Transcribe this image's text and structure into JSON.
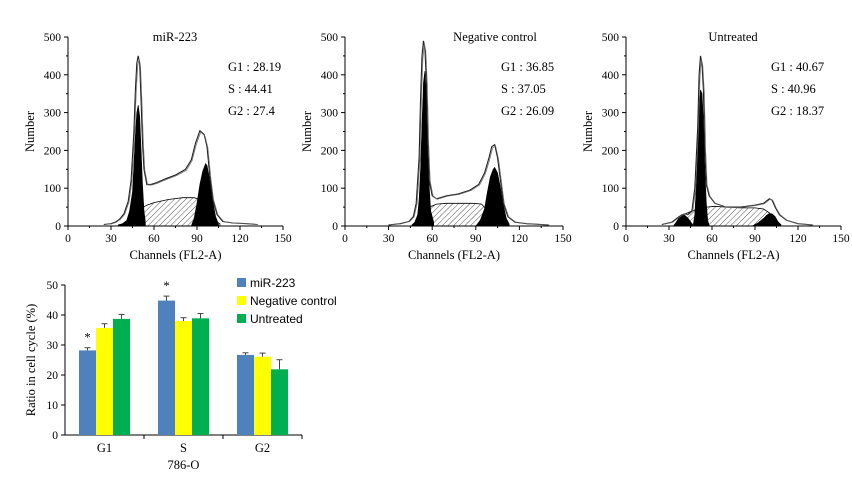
{
  "flow_panels": [
    {
      "title": "miR-223",
      "stats": [
        "G1 : 28.19",
        "S : 44.41",
        "G2 : 27.4"
      ],
      "xlabel": "Channels (FL2-A)",
      "ylabel": "Number",
      "xticks": [
        "0",
        "30",
        "60",
        "90",
        "120",
        "150"
      ],
      "yticks": [
        "0",
        "100",
        "200",
        "300",
        "400",
        "500"
      ]
    },
    {
      "title": "Negative control",
      "stats": [
        "G1 : 36.85",
        "S : 37.05",
        "G2 : 26.09"
      ],
      "xlabel": "Channels (FL2-A)",
      "ylabel": "Number",
      "xticks": [
        "0",
        "30",
        "60",
        "90",
        "120",
        "150"
      ],
      "yticks": [
        "0",
        "100",
        "200",
        "300",
        "400",
        "500"
      ]
    },
    {
      "title": "Untreated",
      "stats": [
        "G1 : 40.67",
        "S : 40.96",
        "G2 : 18.37"
      ],
      "xlabel": "Channels (FL2-A)",
      "ylabel": "Number",
      "xticks": [
        "0",
        "30",
        "60",
        "90",
        "120",
        "150"
      ],
      "yticks": [
        "0",
        "100",
        "200",
        "300",
        "400",
        "500"
      ]
    }
  ],
  "chart_data": [
    {
      "type": "area",
      "title": "miR-223",
      "xlabel": "Channels (FL2-A)",
      "ylabel": "Number",
      "xlim": [
        0,
        150
      ],
      "ylim": [
        0,
        500
      ],
      "envelope": [
        [
          25,
          4
        ],
        [
          30,
          6
        ],
        [
          33,
          10
        ],
        [
          36,
          18
        ],
        [
          39,
          32
        ],
        [
          42,
          65
        ],
        [
          44,
          120
        ],
        [
          46,
          250
        ],
        [
          47,
          360
        ],
        [
          48,
          430
        ],
        [
          49,
          450
        ],
        [
          50,
          430
        ],
        [
          51,
          330
        ],
        [
          52,
          220
        ],
        [
          53,
          150
        ],
        [
          55,
          110
        ],
        [
          58,
          110
        ],
        [
          62,
          115
        ],
        [
          68,
          125
        ],
        [
          75,
          135
        ],
        [
          82,
          150
        ],
        [
          86,
          175
        ],
        [
          89,
          220
        ],
        [
          92,
          252
        ],
        [
          95,
          242
        ],
        [
          97,
          210
        ],
        [
          99,
          130
        ],
        [
          101,
          70
        ],
        [
          104,
          30
        ],
        [
          108,
          12
        ],
        [
          115,
          8
        ],
        [
          125,
          6
        ],
        [
          132,
          4
        ]
      ],
      "g1_peak": [
        [
          35,
          3
        ],
        [
          38,
          6
        ],
        [
          41,
          15
        ],
        [
          43,
          40
        ],
        [
          45,
          90
        ],
        [
          46,
          160
        ],
        [
          47,
          240
        ],
        [
          48,
          300
        ],
        [
          49,
          320
        ],
        [
          50,
          290
        ],
        [
          51,
          200
        ],
        [
          52,
          110
        ],
        [
          53,
          40
        ],
        [
          54,
          10
        ]
      ],
      "s_phase": [
        [
          46,
          20
        ],
        [
          50,
          45
        ],
        [
          55,
          55
        ],
        [
          60,
          62
        ],
        [
          70,
          70
        ],
        [
          80,
          75
        ],
        [
          88,
          75
        ],
        [
          92,
          70
        ],
        [
          97,
          40
        ],
        [
          102,
          15
        ],
        [
          106,
          6
        ]
      ],
      "g2_peak": [
        [
          86,
          0
        ],
        [
          88,
          20
        ],
        [
          90,
          60
        ],
        [
          92,
          110
        ],
        [
          94,
          145
        ],
        [
          96,
          165
        ],
        [
          97,
          160
        ],
        [
          99,
          120
        ],
        [
          101,
          65
        ],
        [
          103,
          25
        ],
        [
          105,
          5
        ]
      ]
    },
    {
      "type": "area",
      "title": "Negative control",
      "xlabel": "Channels (FL2-A)",
      "ylabel": "Number",
      "xlim": [
        0,
        150
      ],
      "ylim": [
        0,
        500
      ],
      "envelope": [
        [
          30,
          3
        ],
        [
          38,
          6
        ],
        [
          44,
          12
        ],
        [
          47,
          25
        ],
        [
          49,
          60
        ],
        [
          51,
          180
        ],
        [
          52,
          340
        ],
        [
          53,
          450
        ],
        [
          54,
          490
        ],
        [
          55,
          470
        ],
        [
          56,
          380
        ],
        [
          57,
          220
        ],
        [
          58,
          120
        ],
        [
          60,
          80
        ],
        [
          63,
          72
        ],
        [
          70,
          80
        ],
        [
          78,
          85
        ],
        [
          86,
          95
        ],
        [
          92,
          110
        ],
        [
          96,
          140
        ],
        [
          99,
          180
        ],
        [
          101,
          210
        ],
        [
          103,
          215
        ],
        [
          105,
          180
        ],
        [
          107,
          120
        ],
        [
          109,
          60
        ],
        [
          112,
          25
        ],
        [
          117,
          10
        ],
        [
          125,
          6
        ],
        [
          140,
          3
        ]
      ],
      "g1_peak": [
        [
          46,
          3
        ],
        [
          48,
          10
        ],
        [
          50,
          30
        ],
        [
          51,
          70
        ],
        [
          52,
          150
        ],
        [
          53,
          270
        ],
        [
          54,
          380
        ],
        [
          55,
          410
        ],
        [
          56,
          340
        ],
        [
          57,
          210
        ],
        [
          58,
          100
        ],
        [
          59,
          40
        ],
        [
          61,
          10
        ]
      ],
      "s_phase": [
        [
          54,
          30
        ],
        [
          58,
          50
        ],
        [
          63,
          58
        ],
        [
          70,
          60
        ],
        [
          80,
          60
        ],
        [
          88,
          60
        ],
        [
          94,
          58
        ],
        [
          97,
          45
        ],
        [
          100,
          25
        ],
        [
          103,
          10
        ],
        [
          106,
          3
        ]
      ],
      "g2_peak": [
        [
          90,
          0
        ],
        [
          93,
          15
        ],
        [
          96,
          45
        ],
        [
          98,
          90
        ],
        [
          100,
          130
        ],
        [
          102,
          150
        ],
        [
          103,
          155
        ],
        [
          105,
          140
        ],
        [
          107,
          100
        ],
        [
          109,
          55
        ],
        [
          111,
          20
        ],
        [
          113,
          5
        ]
      ]
    },
    {
      "type": "area",
      "title": "Untreated",
      "xlabel": "Channels (FL2-A)",
      "ylabel": "Number",
      "xlim": [
        0,
        150
      ],
      "ylim": [
        0,
        500
      ],
      "envelope": [
        [
          25,
          4
        ],
        [
          32,
          10
        ],
        [
          36,
          22
        ],
        [
          39,
          30
        ],
        [
          41,
          32
        ],
        [
          43,
          30
        ],
        [
          46,
          40
        ],
        [
          48,
          100
        ],
        [
          50,
          260
        ],
        [
          51,
          400
        ],
        [
          52,
          450
        ],
        [
          53,
          430
        ],
        [
          54,
          360
        ],
        [
          55,
          200
        ],
        [
          56,
          110
        ],
        [
          58,
          80
        ],
        [
          62,
          60
        ],
        [
          70,
          50
        ],
        [
          80,
          50
        ],
        [
          90,
          55
        ],
        [
          96,
          60
        ],
        [
          100,
          72
        ],
        [
          102,
          68
        ],
        [
          104,
          50
        ],
        [
          107,
          30
        ],
        [
          112,
          15
        ],
        [
          120,
          6
        ],
        [
          130,
          3
        ]
      ],
      "g1_peak": [
        [
          47,
          5
        ],
        [
          48,
          30
        ],
        [
          49,
          100
        ],
        [
          50,
          220
        ],
        [
          51,
          320
        ],
        [
          52,
          360
        ],
        [
          53,
          350
        ],
        [
          54,
          280
        ],
        [
          55,
          150
        ],
        [
          56,
          60
        ],
        [
          57,
          15
        ],
        [
          58,
          3
        ]
      ],
      "s_phase": [
        [
          40,
          30
        ],
        [
          45,
          38
        ],
        [
          50,
          45
        ],
        [
          56,
          50
        ],
        [
          62,
          52
        ],
        [
          70,
          50
        ],
        [
          80,
          48
        ],
        [
          90,
          48
        ],
        [
          96,
          45
        ],
        [
          100,
          35
        ],
        [
          104,
          15
        ],
        [
          108,
          4
        ]
      ],
      "g2_peak": [
        [
          88,
          0
        ],
        [
          92,
          8
        ],
        [
          96,
          20
        ],
        [
          98,
          28
        ],
        [
          100,
          33
        ],
        [
          102,
          32
        ],
        [
          104,
          25
        ],
        [
          106,
          12
        ],
        [
          108,
          3
        ]
      ],
      "extra_peak": [
        [
          33,
          0
        ],
        [
          35,
          10
        ],
        [
          37,
          22
        ],
        [
          39,
          28
        ],
        [
          41,
          28
        ],
        [
          43,
          22
        ],
        [
          45,
          12
        ],
        [
          47,
          0
        ]
      ]
    },
    {
      "type": "bar",
      "xlabel": "786-O",
      "ylabel": "Ratio in cell cycle (%)",
      "categories": [
        "G1",
        "S",
        "G2"
      ],
      "ylim": [
        0,
        50
      ],
      "yticks": [
        "0",
        "10",
        "20",
        "30",
        "40",
        "50"
      ],
      "legend_position": "top-right",
      "series": [
        {
          "name": "miR-223",
          "color": "#4F81BD",
          "values": [
            28.2,
            44.8,
            26.7
          ],
          "errors": [
            0.9,
            1.5,
            0.7
          ]
        },
        {
          "name": "Negative control",
          "color": "#FFFF00",
          "values": [
            35.7,
            38.0,
            26.1
          ],
          "errors": [
            1.4,
            1.1,
            1.2
          ]
        },
        {
          "name": "Untreated",
          "color": "#00B050",
          "values": [
            38.7,
            38.9,
            21.9
          ],
          "errors": [
            1.5,
            1.6,
            3.2
          ]
        }
      ],
      "annotations": [
        {
          "category": "G1",
          "text": "*"
        },
        {
          "category": "S",
          "text": "*"
        }
      ]
    }
  ]
}
